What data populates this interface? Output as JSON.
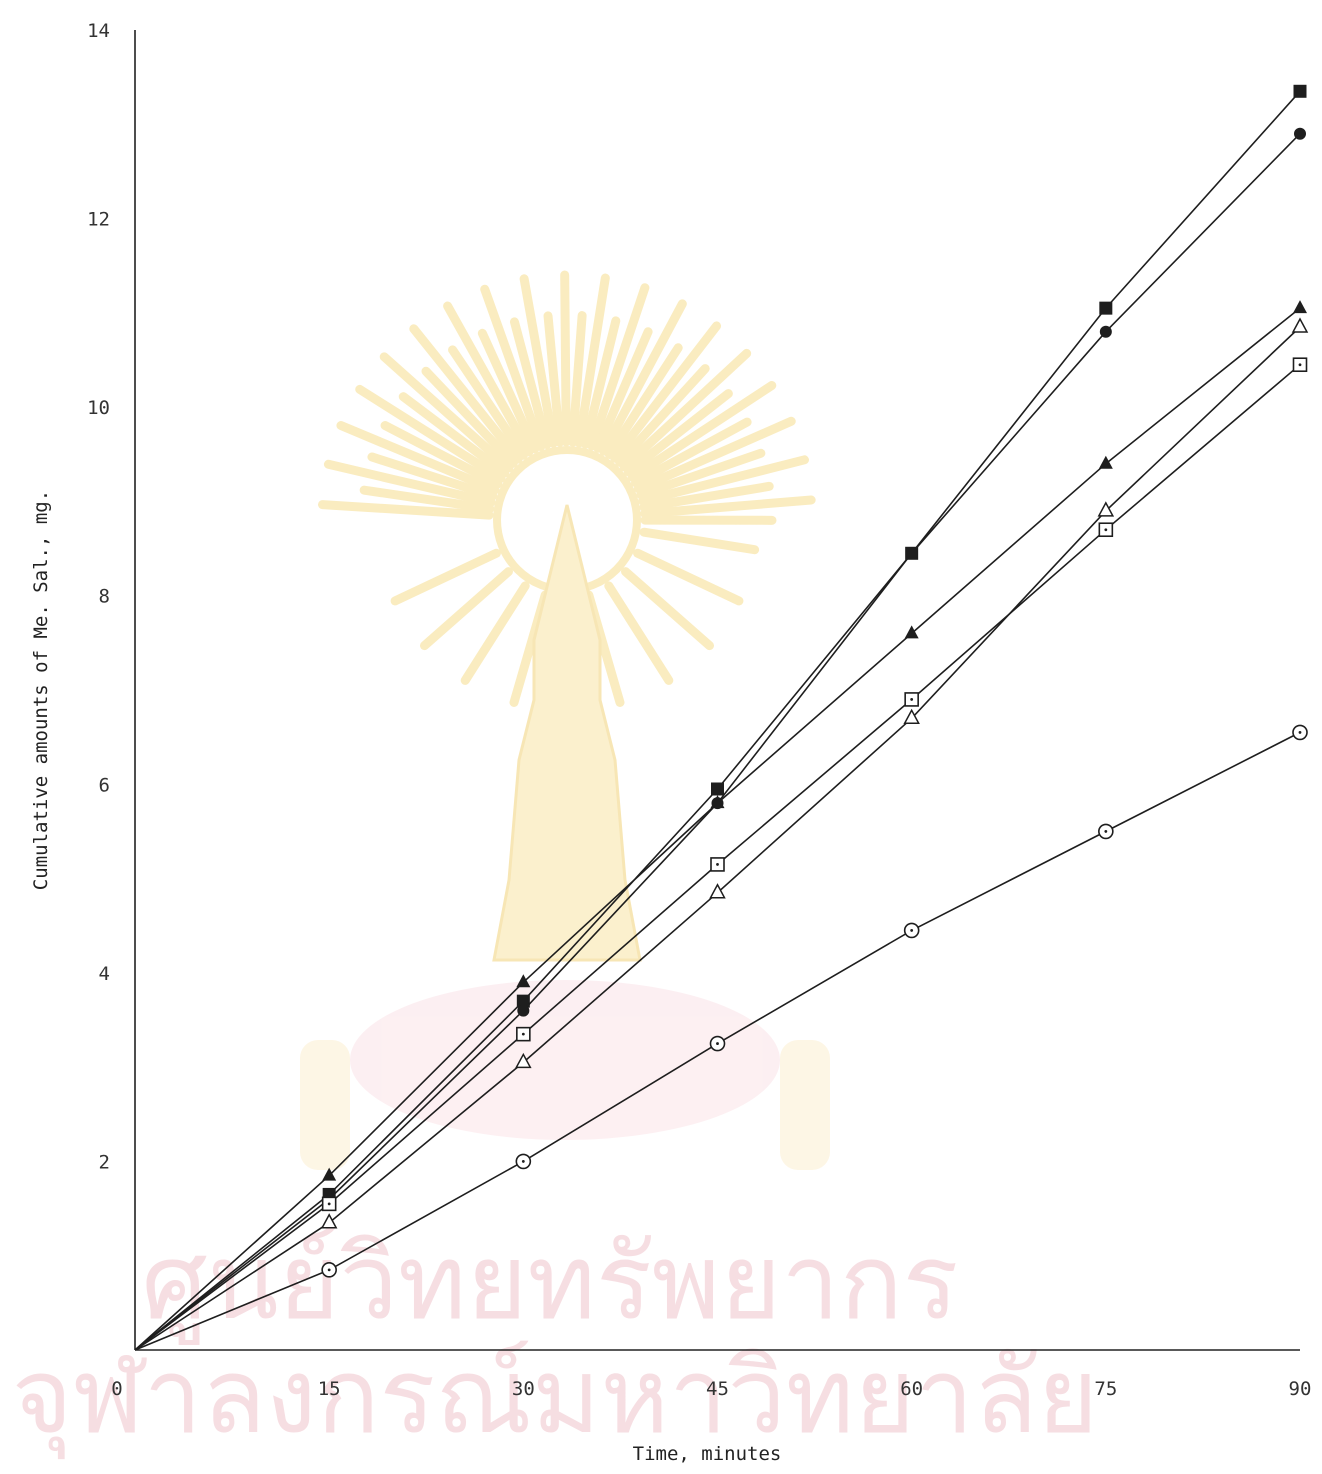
{
  "chart_data": {
    "type": "line",
    "title": "",
    "xlabel": "Time, minutes",
    "ylabel": "Cumulative amounts of Me. Sal., mg.",
    "xlim": [
      0,
      90
    ],
    "ylim": [
      0,
      14
    ],
    "x_ticks": [
      "0",
      "15",
      "30",
      "45",
      "60",
      "75",
      "90"
    ],
    "y_ticks": [
      "2",
      "4",
      "6",
      "8",
      "10",
      "12",
      "14"
    ],
    "grid": false,
    "legend": "none",
    "watermark": {
      "emblem": "university-emblem",
      "text_lines": [
        "ศูนย์วิทยทรัพยากร",
        "จุฬาลงกรณ์มหาวิทยาลัย"
      ]
    },
    "series": [
      {
        "marker": "filled-square",
        "x": [
          0,
          15,
          30,
          45,
          60,
          75,
          90
        ],
        "y": [
          0,
          1.65,
          3.7,
          5.95,
          8.45,
          11.05,
          13.35
        ]
      },
      {
        "marker": "filled-circle",
        "x": [
          0,
          15,
          30,
          45,
          60,
          75,
          90
        ],
        "y": [
          0,
          1.6,
          3.6,
          5.8,
          8.45,
          10.8,
          12.9
        ]
      },
      {
        "marker": "filled-triangle",
        "x": [
          0,
          15,
          30,
          45,
          60,
          75,
          90
        ],
        "y": [
          0,
          1.85,
          3.9,
          5.8,
          7.6,
          9.4,
          11.05
        ]
      },
      {
        "marker": "open-triangle",
        "x": [
          0,
          15,
          30,
          45,
          60,
          75,
          90
        ],
        "y": [
          0,
          1.35,
          3.05,
          4.85,
          6.7,
          8.9,
          10.85
        ]
      },
      {
        "marker": "open-square",
        "x": [
          0,
          15,
          30,
          45,
          60,
          75,
          90
        ],
        "y": [
          0,
          1.55,
          3.35,
          5.15,
          6.9,
          8.7,
          10.45
        ]
      },
      {
        "marker": "open-circle",
        "x": [
          0,
          15,
          30,
          45,
          60,
          75,
          90
        ],
        "y": [
          0,
          0.85,
          2.0,
          3.25,
          4.45,
          5.5,
          6.55
        ]
      }
    ]
  }
}
